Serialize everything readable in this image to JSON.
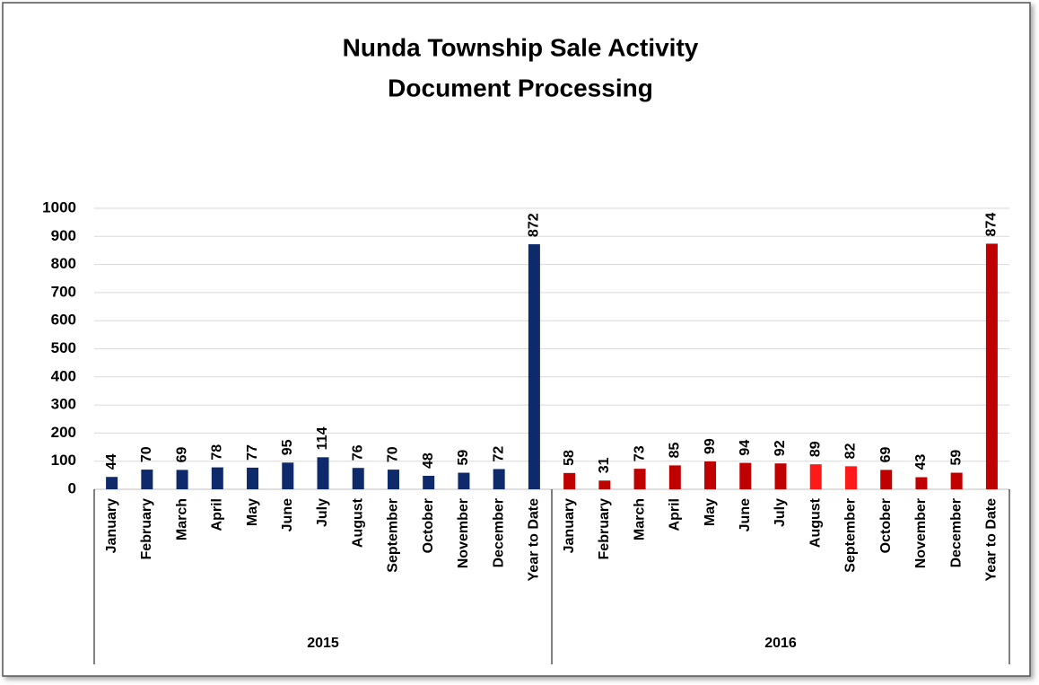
{
  "chart_data": {
    "type": "bar",
    "title": "Nunda Township Sale Activity",
    "subtitle": "Document Processing",
    "groups": [
      {
        "name": "2015",
        "categories": [
          "January",
          "February",
          "March",
          "April",
          "May",
          "June",
          "July",
          "August",
          "September",
          "October",
          "November",
          "December",
          "Year to Date"
        ],
        "values": [
          44,
          70,
          69,
          78,
          77,
          95,
          114,
          76,
          70,
          48,
          59,
          72,
          872
        ],
        "colors": [
          "#0e2a6b",
          "#0e2a6b",
          "#0e2a6b",
          "#0e2a6b",
          "#0e2a6b",
          "#0e2a6b",
          "#0e2a6b",
          "#0e2a6b",
          "#0e2a6b",
          "#0e2a6b",
          "#0e2a6b",
          "#0e2a6b",
          "#0e2a6b"
        ]
      },
      {
        "name": "2016",
        "categories": [
          "January",
          "February",
          "March",
          "April",
          "May",
          "June",
          "July",
          "August",
          "September",
          "October",
          "November",
          "December",
          "Year to Date"
        ],
        "values": [
          58,
          31,
          73,
          85,
          99,
          94,
          92,
          89,
          82,
          69,
          43,
          59,
          874
        ],
        "colors": [
          "#c00000",
          "#c00000",
          "#c00000",
          "#c00000",
          "#c00000",
          "#c00000",
          "#c00000",
          "#ff1a1a",
          "#ff1a1a",
          "#c00000",
          "#c00000",
          "#c00000",
          "#c00000"
        ]
      }
    ],
    "ylim": [
      0,
      1000
    ],
    "yticks": [
      0,
      100,
      200,
      300,
      400,
      500,
      600,
      700,
      800,
      900,
      1000
    ],
    "grid": true
  }
}
